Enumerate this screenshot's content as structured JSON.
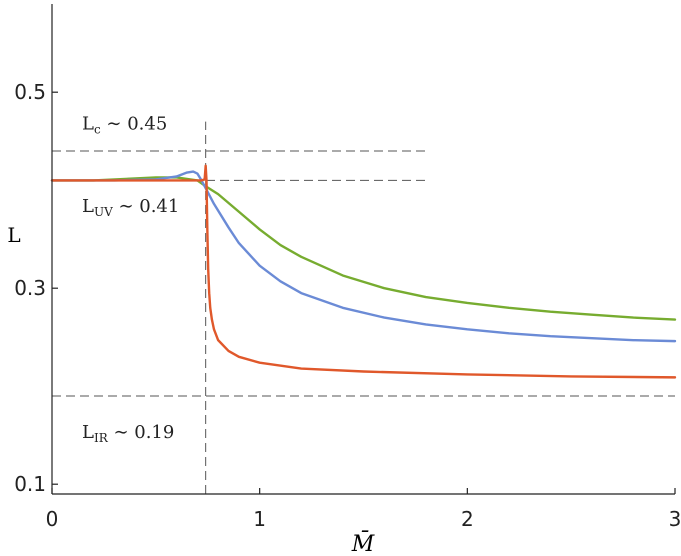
{
  "chart_data": {
    "type": "line",
    "xlabel": "M̄",
    "ylabel": "L",
    "xlim": [
      0,
      3
    ],
    "ylim": [
      0.09,
      0.59
    ],
    "xticks": [
      0,
      1,
      2,
      3
    ],
    "yticks": [
      0.1,
      0.3,
      0.5
    ],
    "xtick_labels": [
      "0",
      "1",
      "2",
      "3"
    ],
    "ytick_labels": [
      "0.1",
      "0.3",
      "0.5"
    ],
    "grid": false,
    "reference_lines": [
      {
        "orientation": "horizontal",
        "y": 0.44,
        "x_range": [
          0,
          1.82
        ],
        "style": "dashed"
      },
      {
        "orientation": "horizontal",
        "y": 0.41,
        "x_range": [
          0,
          1.82
        ],
        "style": "dashed"
      },
      {
        "orientation": "horizontal",
        "y": 0.19,
        "x_range": [
          0,
          3
        ],
        "style": "dashed"
      },
      {
        "orientation": "vertical",
        "x": 0.74,
        "y_range": [
          0.09,
          0.47
        ],
        "style": "dashed"
      }
    ],
    "annotations": [
      {
        "main": "L",
        "sub": "c",
        "rest": " ∼ 0.45",
        "x": 0.15,
        "y": 0.462
      },
      {
        "main": "L",
        "sub": "UV",
        "rest": " ∼ 0.41",
        "x": 0.15,
        "y": 0.378
      },
      {
        "main": "L",
        "sub": "IR",
        "rest": " ∼ 0.19",
        "x": 0.15,
        "y": 0.147
      }
    ],
    "series": [
      {
        "color": "#77ac30",
        "x": [
          0,
          0.2,
          0.4,
          0.5,
          0.6,
          0.7,
          0.74,
          0.8,
          0.9,
          1.0,
          1.1,
          1.2,
          1.4,
          1.6,
          1.8,
          2.0,
          2.2,
          2.4,
          2.6,
          2.8,
          3.0
        ],
        "y": [
          0.41,
          0.41,
          0.412,
          0.413,
          0.413,
          0.41,
          0.404,
          0.396,
          0.378,
          0.36,
          0.344,
          0.332,
          0.313,
          0.3,
          0.291,
          0.285,
          0.28,
          0.276,
          0.273,
          0.27,
          0.268
        ]
      },
      {
        "color": "#6b8bd6",
        "x": [
          0,
          0.3,
          0.5,
          0.6,
          0.65,
          0.68,
          0.7,
          0.72,
          0.74,
          0.78,
          0.85,
          0.9,
          1.0,
          1.1,
          1.2,
          1.4,
          1.6,
          1.8,
          2.0,
          2.2,
          2.4,
          2.6,
          2.8,
          3.0
        ],
        "y": [
          0.41,
          0.41,
          0.411,
          0.414,
          0.418,
          0.419,
          0.417,
          0.41,
          0.402,
          0.386,
          0.362,
          0.346,
          0.323,
          0.307,
          0.295,
          0.28,
          0.27,
          0.263,
          0.258,
          0.254,
          0.251,
          0.249,
          0.247,
          0.246
        ]
      },
      {
        "color": "#e0582b",
        "x": [
          0,
          0.3,
          0.6,
          0.72,
          0.735,
          0.74,
          0.744,
          0.748,
          0.752,
          0.757,
          0.762,
          0.77,
          0.78,
          0.8,
          0.85,
          0.9,
          1.0,
          1.2,
          1.5,
          2.0,
          2.5,
          3.0
        ],
        "y": [
          0.41,
          0.41,
          0.41,
          0.41,
          0.411,
          0.425,
          0.41,
          0.36,
          0.32,
          0.295,
          0.28,
          0.268,
          0.258,
          0.247,
          0.236,
          0.23,
          0.224,
          0.218,
          0.215,
          0.212,
          0.21,
          0.209
        ]
      }
    ]
  }
}
